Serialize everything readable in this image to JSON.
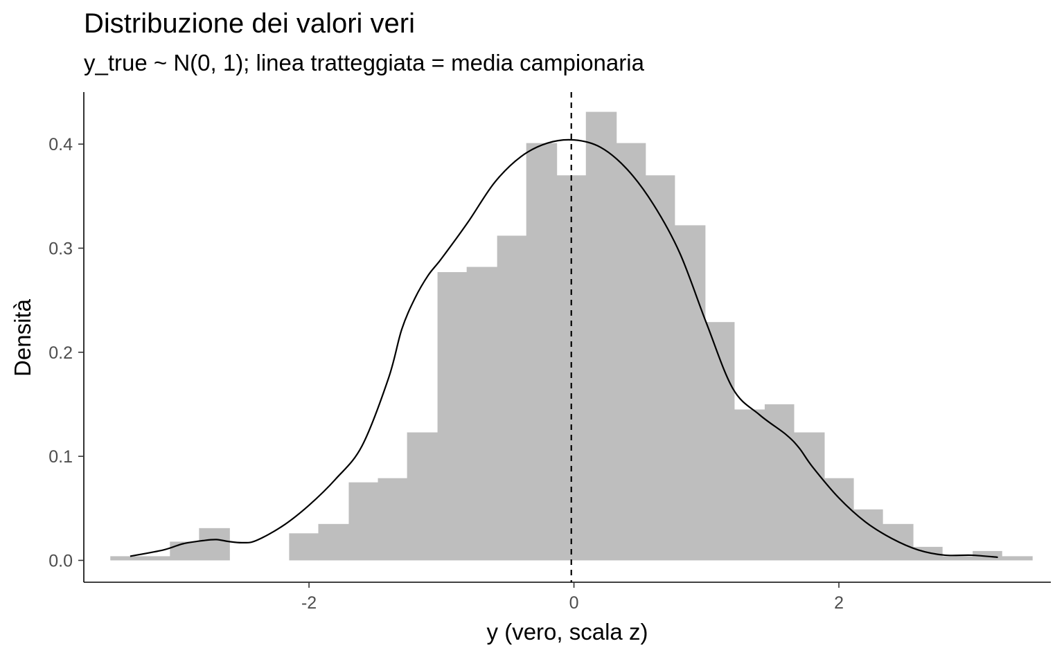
{
  "chart_data": {
    "type": "histogram",
    "title": "Distribuzione dei valori veri",
    "subtitle": "y_true ~ N(0, 1); linea tratteggiata = media campionaria",
    "xlabel": "y (vero, scala z)",
    "ylabel": "Densità",
    "xlim": [
      -3.7,
      3.6
    ],
    "ylim": [
      -0.021,
      0.45
    ],
    "x_ticks": [
      -2,
      0,
      2
    ],
    "x_tick_labels": [
      "-2",
      "0",
      "2"
    ],
    "y_ticks": [
      0.0,
      0.1,
      0.2,
      0.3,
      0.4
    ],
    "y_tick_labels": [
      "0.0",
      "0.1",
      "0.2",
      "0.3",
      "0.4"
    ],
    "grid": false,
    "mean_line": {
      "x": -0.02,
      "style": "dashed"
    },
    "bins": {
      "edges": [
        -3.5,
        -3.27,
        -3.05,
        -2.83,
        -2.6,
        -2.38,
        -2.15,
        -1.93,
        -1.7,
        -1.48,
        -1.26,
        -1.03,
        -0.81,
        -0.58,
        -0.36,
        -0.13,
        0.09,
        0.32,
        0.54,
        0.76,
        0.99,
        1.21,
        1.44,
        1.66,
        1.89,
        2.11,
        2.33,
        2.56,
        2.78,
        3.01,
        3.23,
        3.46
      ],
      "density": [
        0.004,
        0.004,
        0.018,
        0.031,
        0.0,
        0.0,
        0.026,
        0.035,
        0.075,
        0.079,
        0.123,
        0.277,
        0.282,
        0.312,
        0.401,
        0.37,
        0.431,
        0.401,
        0.37,
        0.322,
        0.229,
        0.145,
        0.15,
        0.123,
        0.079,
        0.049,
        0.035,
        0.013,
        0.004,
        0.009,
        0.004
      ],
      "color": "#bebebe"
    },
    "density_curve": {
      "x": [
        -3.35,
        -3.1,
        -2.95,
        -2.8,
        -2.7,
        -2.6,
        -2.5,
        -2.4,
        -2.2,
        -2.0,
        -1.8,
        -1.6,
        -1.4,
        -1.3,
        -1.2,
        -1.1,
        -1.0,
        -0.8,
        -0.6,
        -0.4,
        -0.2,
        0.0,
        0.2,
        0.4,
        0.6,
        0.8,
        1.0,
        1.2,
        1.4,
        1.6,
        1.7,
        1.8,
        2.0,
        2.2,
        2.4,
        2.6,
        2.8,
        3.0,
        3.2
      ],
      "y": [
        0.004,
        0.01,
        0.016,
        0.019,
        0.02,
        0.018,
        0.017,
        0.019,
        0.033,
        0.053,
        0.078,
        0.11,
        0.175,
        0.222,
        0.252,
        0.274,
        0.29,
        0.325,
        0.363,
        0.388,
        0.401,
        0.404,
        0.397,
        0.376,
        0.342,
        0.295,
        0.228,
        0.165,
        0.14,
        0.121,
        0.108,
        0.09,
        0.06,
        0.037,
        0.021,
        0.01,
        0.005,
        0.005,
        0.003
      ],
      "color": "#000000"
    }
  }
}
